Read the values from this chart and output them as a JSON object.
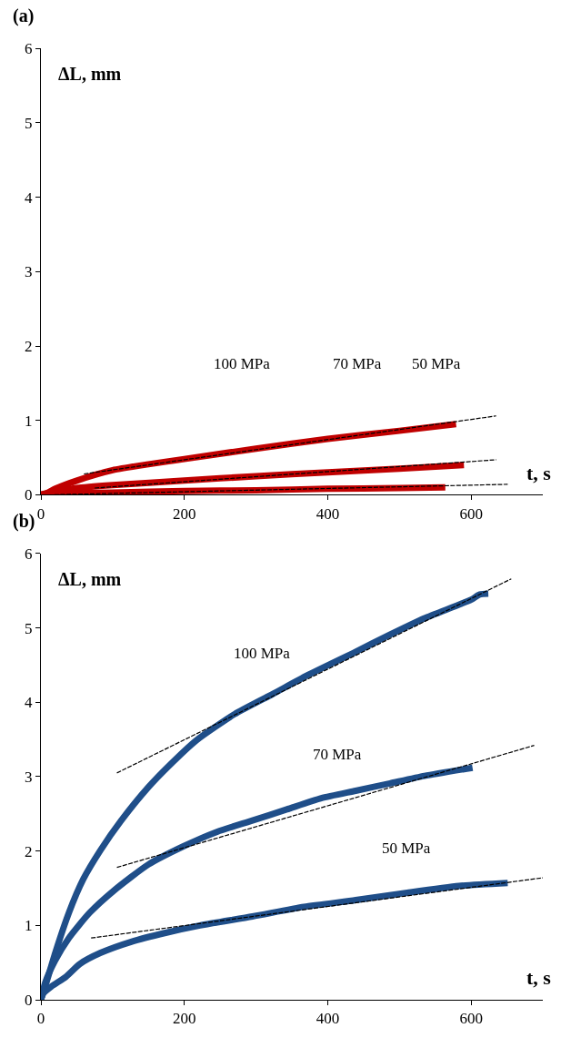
{
  "chart_data": [
    {
      "type": "line",
      "title": "(a)",
      "xlabel": "t, s",
      "ylabel": "ΔL, mm",
      "xlim": [
        0,
        700
      ],
      "xticks": [
        0,
        200,
        400,
        600
      ],
      "ylim": [
        0,
        6
      ],
      "yticks": [
        0,
        1,
        2,
        3,
        4,
        5,
        6
      ],
      "marker": "none",
      "series": [
        {
          "color": "#c00000",
          "line_style": "solid",
          "x": [
            0,
            10,
            20,
            50,
            100,
            150,
            200,
            300,
            400,
            500,
            579
          ],
          "values": [
            0,
            0.03,
            0.08,
            0.19,
            0.33,
            0.41,
            0.48,
            0.62,
            0.75,
            0.86,
            0.95
          ]
        },
        {
          "color": "#c00000",
          "line_style": "solid",
          "x": [
            0,
            20,
            50,
            100,
            200,
            300,
            400,
            500,
            590
          ],
          "values": [
            0,
            0.04,
            0.09,
            0.13,
            0.19,
            0.25,
            0.3,
            0.35,
            0.4
          ]
        },
        {
          "color": "#c00000",
          "line_style": "solid",
          "x": [
            0,
            50,
            100,
            200,
            300,
            400,
            500,
            564
          ],
          "values": [
            0,
            0.02,
            0.03,
            0.05,
            0.06,
            0.08,
            0.09,
            0.1
          ]
        },
        {
          "color": "#000000",
          "line_style": "dashed",
          "x": [
            60,
            635
          ],
          "values": [
            0.28,
            1.06
          ]
        },
        {
          "color": "#000000",
          "line_style": "dashed",
          "x": [
            75,
            635
          ],
          "values": [
            0.09,
            0.47
          ]
        },
        {
          "color": "#000000",
          "line_style": "dashed",
          "x": [
            19,
            651
          ],
          "values": [
            0.0,
            0.14
          ]
        }
      ],
      "annotations": [
        "100 MPa",
        "70 MPa",
        "50 MPa"
      ]
    },
    {
      "type": "line",
      "title": "(b)",
      "xlabel": "t, s",
      "ylabel": "ΔL, mm",
      "xlim": [
        0,
        700
      ],
      "xticks": [
        0,
        200,
        400,
        600
      ],
      "ylim": [
        0,
        6
      ],
      "yticks": [
        0,
        1,
        2,
        3,
        4,
        5,
        6
      ],
      "marker": "none",
      "series": [
        {
          "color": "#1f4e89",
          "line_style": "solid",
          "x": [
            0,
            6,
            20,
            39,
            59,
            83,
            112,
            150,
            179,
            217,
            270,
            323,
            371,
            439,
            487,
            535,
            600,
            612,
            624
          ],
          "values": [
            0,
            0.18,
            0.63,
            1.17,
            1.62,
            2.01,
            2.41,
            2.86,
            3.15,
            3.49,
            3.84,
            4.11,
            4.36,
            4.68,
            4.91,
            5.13,
            5.38,
            5.45,
            5.46
          ]
        },
        {
          "color": "#1f4e89",
          "line_style": "solid",
          "x": [
            0,
            6,
            20,
            39,
            68,
            102,
            150,
            198,
            246,
            295,
            343,
            391,
            439,
            487,
            535,
            602
          ],
          "values": [
            0,
            0.23,
            0.53,
            0.83,
            1.17,
            1.47,
            1.82,
            2.06,
            2.26,
            2.41,
            2.56,
            2.71,
            2.81,
            2.91,
            3.01,
            3.12
          ]
        },
        {
          "color": "#1f4e89",
          "line_style": "solid",
          "x": [
            0,
            3,
            15,
            35,
            54,
            83,
            126,
            174,
            222,
            295,
            367,
            439,
            511,
            583,
            651
          ],
          "values": [
            0,
            0.08,
            0.18,
            0.31,
            0.48,
            0.63,
            0.78,
            0.9,
            1.0,
            1.12,
            1.25,
            1.34,
            1.44,
            1.53,
            1.57
          ]
        },
        {
          "color": "#000000",
          "line_style": "dashed",
          "x": [
            106,
            656
          ],
          "values": [
            3.05,
            5.66
          ]
        },
        {
          "color": "#000000",
          "line_style": "dashed",
          "x": [
            106,
            688
          ],
          "values": [
            1.78,
            3.42
          ]
        },
        {
          "color": "#000000",
          "line_style": "dashed",
          "x": [
            70,
            700
          ],
          "values": [
            0.83,
            1.64
          ]
        }
      ],
      "annotations": [
        "100 MPa",
        "70 MPa",
        "50 MPa"
      ]
    }
  ]
}
